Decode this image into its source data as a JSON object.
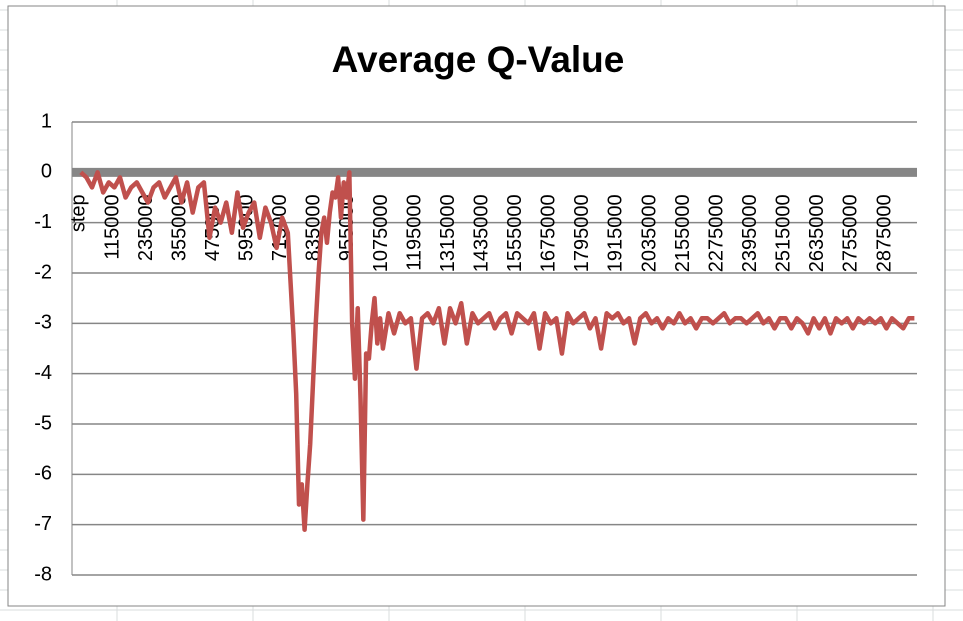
{
  "chart_data": {
    "type": "line",
    "title": "Average Q-Value",
    "x": [
      0,
      20000,
      40000,
      60000,
      80000,
      100000,
      120000,
      140000,
      160000,
      180000,
      200000,
      220000,
      240000,
      260000,
      280000,
      300000,
      320000,
      340000,
      360000,
      380000,
      400000,
      420000,
      440000,
      460000,
      480000,
      500000,
      520000,
      540000,
      560000,
      580000,
      600000,
      620000,
      640000,
      660000,
      680000,
      700000,
      720000,
      740000,
      750000,
      760000,
      770000,
      780000,
      790000,
      800000,
      810000,
      820000,
      830000,
      840000,
      850000,
      860000,
      870000,
      880000,
      890000,
      900000,
      910000,
      920000,
      930000,
      940000,
      950000,
      960000,
      970000,
      980000,
      990000,
      1000000,
      1010000,
      1020000,
      1030000,
      1040000,
      1050000,
      1060000,
      1070000,
      1080000,
      1100000,
      1120000,
      1140000,
      1160000,
      1180000,
      1200000,
      1220000,
      1240000,
      1260000,
      1280000,
      1300000,
      1320000,
      1340000,
      1360000,
      1380000,
      1400000,
      1420000,
      1440000,
      1460000,
      1480000,
      1500000,
      1520000,
      1540000,
      1560000,
      1580000,
      1600000,
      1620000,
      1640000,
      1660000,
      1680000,
      1700000,
      1720000,
      1740000,
      1760000,
      1780000,
      1800000,
      1820000,
      1840000,
      1860000,
      1880000,
      1900000,
      1920000,
      1940000,
      1960000,
      1980000,
      2000000,
      2020000,
      2040000,
      2060000,
      2080000,
      2100000,
      2120000,
      2140000,
      2160000,
      2180000,
      2200000,
      2220000,
      2240000,
      2260000,
      2280000,
      2300000,
      2320000,
      2340000,
      2360000,
      2380000,
      2400000,
      2420000,
      2440000,
      2460000,
      2480000,
      2500000,
      2520000,
      2540000,
      2560000,
      2580000,
      2600000,
      2620000,
      2640000,
      2660000,
      2680000,
      2700000,
      2720000,
      2740000,
      2760000,
      2780000,
      2800000,
      2820000,
      2840000,
      2860000,
      2880000,
      2900000,
      2920000,
      2940000,
      2960000,
      2980000
    ],
    "series": [
      {
        "name": "Average Q-Value",
        "color": "#c0504d",
        "values": [
          0,
          -0.1,
          -0.3,
          0,
          -0.4,
          -0.2,
          -0.3,
          -0.1,
          -0.5,
          -0.3,
          -0.2,
          -0.4,
          -0.6,
          -0.3,
          -0.2,
          -0.5,
          -0.3,
          -0.1,
          -0.6,
          -0.2,
          -0.8,
          -0.3,
          -0.2,
          -1.3,
          -0.7,
          -1.0,
          -0.6,
          -1.2,
          -0.4,
          -1.1,
          -0.8,
          -0.6,
          -1.3,
          -0.7,
          -1.0,
          -1.5,
          -0.9,
          -1.2,
          -2.2,
          -3.2,
          -4.4,
          -6.6,
          -6.2,
          -7.1,
          -6.2,
          -5.4,
          -4.2,
          -3.0,
          -2.0,
          -1.2,
          -0.9,
          -1.4,
          -0.8,
          -0.4,
          -0.5,
          -0.1,
          -0.9,
          -0.2,
          -0.5,
          0,
          -3.0,
          -4.1,
          -2.7,
          -4.5,
          -6.9,
          -3.6,
          -3.7,
          -3.0,
          -2.5,
          -3.4,
          -2.9,
          -3.5,
          -2.8,
          -3.2,
          -2.8,
          -3.0,
          -2.9,
          -3.9,
          -2.9,
          -2.8,
          -3.0,
          -2.7,
          -3.4,
          -2.7,
          -3.0,
          -2.6,
          -3.4,
          -2.8,
          -3.0,
          -2.9,
          -2.8,
          -3.1,
          -2.9,
          -2.8,
          -3.2,
          -2.8,
          -2.9,
          -3.0,
          -2.8,
          -3.5,
          -2.8,
          -3.0,
          -2.9,
          -3.6,
          -2.8,
          -3.0,
          -2.9,
          -2.8,
          -3.1,
          -2.9,
          -3.5,
          -2.8,
          -2.9,
          -2.8,
          -3.0,
          -2.9,
          -3.4,
          -2.9,
          -2.8,
          -3.0,
          -2.9,
          -3.1,
          -2.9,
          -3.0,
          -2.8,
          -3.0,
          -2.9,
          -3.1,
          -2.9,
          -2.9,
          -3.0,
          -2.9,
          -2.8,
          -3.0,
          -2.9,
          -2.9,
          -3.0,
          -2.9,
          -2.8,
          -3.0,
          -2.9,
          -3.1,
          -2.9,
          -2.9,
          -3.1,
          -2.9,
          -3.0,
          -3.2,
          -2.9,
          -3.1,
          -2.9,
          -3.2,
          -2.9,
          -3.0,
          -2.9,
          -3.1,
          -2.9,
          -3.0,
          -2.9,
          -3.0,
          -2.9,
          -3.1,
          -2.9,
          -3.0,
          -3.1,
          -2.9,
          -2.9
        ]
      }
    ],
    "xlim": [
      -31500,
      2989400
    ],
    "xticks": [
      {
        "value": -5000,
        "label": "step"
      },
      115000,
      235000,
      355000,
      475000,
      595000,
      715000,
      835000,
      955000,
      1075000,
      1195000,
      1315000,
      1435000,
      1555000,
      1675000,
      1795000,
      1915000,
      2035000,
      2155000,
      2275000,
      2395000,
      2515000,
      2635000,
      2755000,
      2875000
    ],
    "ylim": [
      -8,
      1
    ],
    "yticks": [
      1,
      0,
      -1,
      -2,
      -3,
      -4,
      -5,
      -6,
      -7,
      -8
    ],
    "grid": true
  }
}
